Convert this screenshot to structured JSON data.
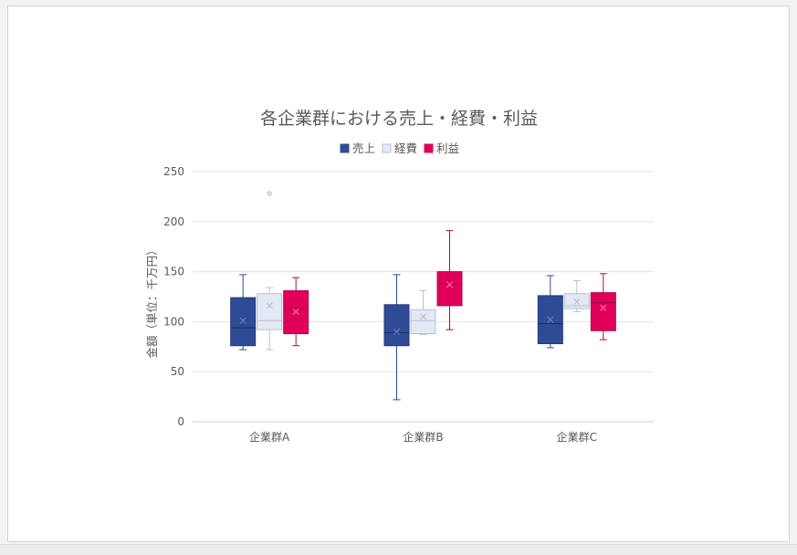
{
  "chart_data": {
    "type": "box",
    "title": "各企業群における売上・経費・利益",
    "ylabel": "金額（単位：千万円）",
    "xlabel": "",
    "ylim": [
      0,
      250
    ],
    "yticks": [
      0,
      50,
      100,
      150,
      200,
      250
    ],
    "grid": true,
    "legend_position": "top",
    "categories": [
      "企業群A",
      "企業群B",
      "企業群C"
    ],
    "series": [
      {
        "name": "売上",
        "color": "#2f4b95",
        "boxes": [
          {
            "min": 72,
            "q1": 76,
            "median": 94,
            "q3": 124,
            "max": 147,
            "mean": 101,
            "outliers": []
          },
          {
            "min": 22,
            "q1": 76,
            "median": 89,
            "q3": 117,
            "max": 147,
            "mean": 90,
            "outliers": []
          },
          {
            "min": 74,
            "q1": 78,
            "median": 98,
            "q3": 126,
            "max": 146,
            "mean": 102,
            "outliers": []
          }
        ]
      },
      {
        "name": "経費",
        "color": "#e3e8f5",
        "boxes": [
          {
            "min": 72,
            "q1": 92,
            "median": 101,
            "q3": 128,
            "max": 134,
            "mean": 116,
            "outliers": [
              228
            ]
          },
          {
            "min": 87,
            "q1": 88,
            "median": 101,
            "q3": 112,
            "max": 131,
            "mean": 105,
            "outliers": []
          },
          {
            "min": 110,
            "q1": 113,
            "median": 116,
            "q3": 128,
            "max": 141,
            "mean": 120,
            "outliers": []
          }
        ]
      },
      {
        "name": "利益",
        "color": "#e0005a",
        "boxes": [
          {
            "min": 76,
            "q1": 88,
            "median": 113,
            "q3": 131,
            "max": 144,
            "mean": 110,
            "outliers": []
          },
          {
            "min": 92,
            "q1": 116,
            "median": 138,
            "q3": 150,
            "max": 191,
            "mean": 137,
            "outliers": []
          },
          {
            "min": 82,
            "q1": 91,
            "median": 119,
            "q3": 129,
            "max": 148,
            "mean": 114,
            "outliers": []
          }
        ]
      }
    ]
  }
}
